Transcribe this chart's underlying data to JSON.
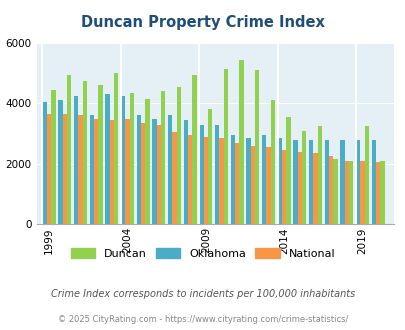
{
  "title": "Duncan Property Crime Index",
  "subtitle": "Crime Index corresponds to incidents per 100,000 inhabitants",
  "footer": "© 2025 CityRating.com - https://www.cityrating.com/crime-statistics/",
  "years": [
    1999,
    2000,
    2001,
    2002,
    2003,
    2004,
    2005,
    2006,
    2007,
    2008,
    2009,
    2010,
    2011,
    2012,
    2013,
    2014,
    2015,
    2016,
    2017,
    2018,
    2019,
    2020
  ],
  "duncan": [
    4450,
    4950,
    4750,
    4600,
    5000,
    4350,
    4150,
    4400,
    4550,
    4950,
    3800,
    5150,
    5450,
    5100,
    4100,
    3550,
    3100,
    3250,
    2150,
    2100,
    3250,
    2100
  ],
  "oklahoma": [
    4050,
    4100,
    4250,
    3600,
    4300,
    4250,
    3600,
    3500,
    3600,
    3450,
    3300,
    3300,
    2950,
    2850,
    2950,
    2850,
    2800,
    2800,
    2800,
    2800,
    2800,
    2800
  ],
  "national": [
    3650,
    3650,
    3600,
    3500,
    3450,
    3500,
    3350,
    3300,
    3050,
    2950,
    2900,
    2850,
    2700,
    2600,
    2550,
    2450,
    2400,
    2350,
    2250,
    2100,
    2100,
    2050
  ],
  "duncan_color": "#92d050",
  "oklahoma_color": "#4bacc6",
  "national_color": "#f79646",
  "plot_bg": "#e4f0f5",
  "ylim": [
    0,
    6000
  ],
  "yticks": [
    0,
    2000,
    4000,
    6000
  ],
  "xticks": [
    1999,
    2004,
    2009,
    2014,
    2019
  ],
  "title_color": "#1f4e79",
  "subtitle_color": "#555555",
  "footer_color": "#888888",
  "bar_width": 0.28,
  "legend_labels": [
    "Duncan",
    "Oklahoma",
    "National"
  ]
}
